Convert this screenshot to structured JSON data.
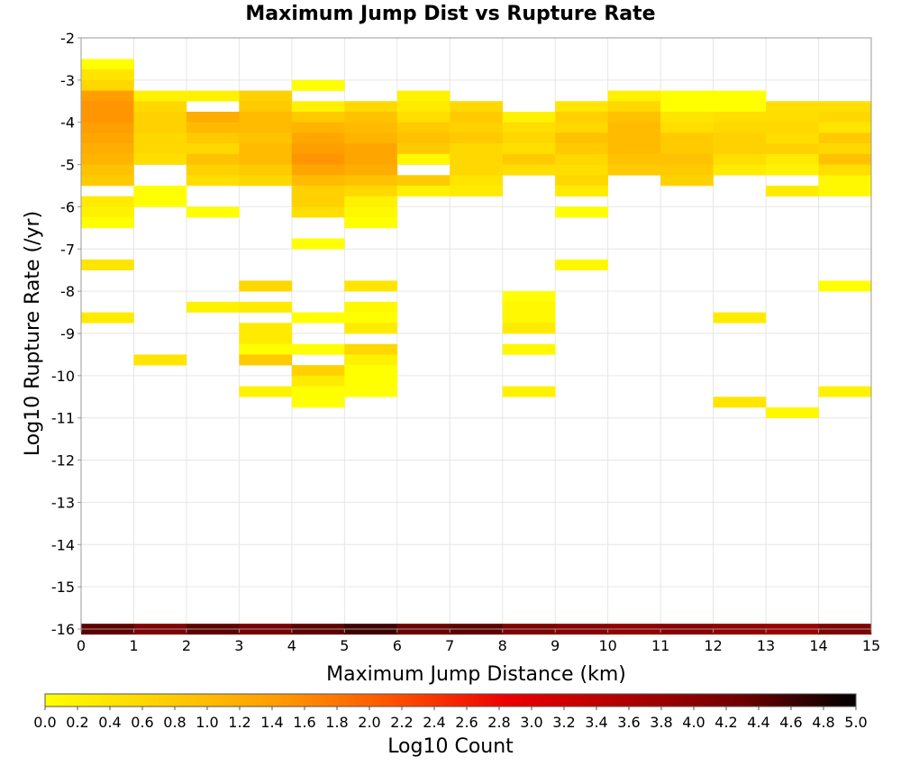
{
  "chart_data": {
    "type": "heatmap",
    "title": "Maximum Jump Dist vs Rupture Rate",
    "xlabel": "Maximum Jump Distance (km)",
    "ylabel": "Log10 Rupture Rate (/yr)",
    "xlim": [
      0,
      15
    ],
    "ylim": [
      -16,
      -2
    ],
    "x_bin_width": 1,
    "y_bin_width": 0.25,
    "grid": true,
    "x_ticks": [
      "0",
      "1",
      "2",
      "3",
      "4",
      "5",
      "6",
      "7",
      "8",
      "9",
      "10",
      "11",
      "12",
      "13",
      "14",
      "15"
    ],
    "y_ticks": [
      "-2",
      "-3",
      "-4",
      "-5",
      "-6",
      "-7",
      "-8",
      "-9",
      "-10",
      "-11",
      "-12",
      "-13",
      "-14",
      "-15",
      "-16"
    ],
    "colorbar": {
      "label": "Log10 Count",
      "range": [
        0,
        5
      ],
      "ticks": [
        "0.0",
        "0.2",
        "0.4",
        "0.6",
        "0.8",
        "1.0",
        "1.2",
        "1.4",
        "1.6",
        "1.8",
        "2.0",
        "2.2",
        "2.4",
        "2.6",
        "2.8",
        "3.0",
        "3.2",
        "3.4",
        "3.6",
        "3.8",
        "4.0",
        "4.2",
        "4.4",
        "4.6",
        "4.8",
        "5.0"
      ],
      "colors": [
        "#ffff00",
        "#ffd000",
        "#ff9c00",
        "#ff5200",
        "#ec0000",
        "#b00000",
        "#700000",
        "#000000"
      ]
    },
    "cells": [
      [
        0,
        -2.625,
        0.0
      ],
      [
        0,
        -2.875,
        0.4
      ],
      [
        0,
        -3.125,
        0.6
      ],
      [
        0,
        -3.375,
        1.4
      ],
      [
        0,
        -3.625,
        1.5
      ],
      [
        0,
        -3.875,
        1.5
      ],
      [
        0,
        -4.125,
        1.4
      ],
      [
        0,
        -4.375,
        1.3
      ],
      [
        0,
        -4.625,
        1.2
      ],
      [
        0,
        -4.875,
        1.1
      ],
      [
        0,
        -5.125,
        0.9
      ],
      [
        0,
        -5.375,
        0.8
      ],
      [
        0,
        -5.875,
        0.3
      ],
      [
        0,
        -6.125,
        0.2
      ],
      [
        0,
        -6.375,
        0.0
      ],
      [
        0,
        -7.375,
        0.4
      ],
      [
        0,
        -8.625,
        0.3
      ],
      [
        0,
        -16.0,
        4.4
      ],
      [
        1,
        -3.375,
        0.2
      ],
      [
        1,
        -3.625,
        0.6
      ],
      [
        1,
        -3.875,
        0.7
      ],
      [
        1,
        -4.125,
        0.7
      ],
      [
        1,
        -4.375,
        0.6
      ],
      [
        1,
        -4.625,
        0.6
      ],
      [
        1,
        -4.875,
        0.5
      ],
      [
        1,
        -5.625,
        0.0
      ],
      [
        1,
        -5.875,
        0.0
      ],
      [
        1,
        -9.625,
        0.4
      ],
      [
        1,
        -16.0,
        4.1
      ],
      [
        2,
        -3.375,
        0.2
      ],
      [
        2,
        -3.875,
        1.2
      ],
      [
        2,
        -4.125,
        1.0
      ],
      [
        2,
        -4.375,
        0.8
      ],
      [
        2,
        -4.625,
        0.6
      ],
      [
        2,
        -4.875,
        0.9
      ],
      [
        2,
        -5.125,
        0.7
      ],
      [
        2,
        -5.375,
        0.5
      ],
      [
        2,
        -6.125,
        0.0
      ],
      [
        2,
        -8.375,
        0.2
      ],
      [
        2,
        -16.0,
        4.4
      ],
      [
        3,
        -3.375,
        0.7
      ],
      [
        3,
        -3.625,
        0.8
      ],
      [
        3,
        -3.875,
        1.0
      ],
      [
        3,
        -4.125,
        1.0
      ],
      [
        3,
        -4.375,
        0.9
      ],
      [
        3,
        -4.625,
        1.0
      ],
      [
        3,
        -4.875,
        1.0
      ],
      [
        3,
        -5.125,
        0.8
      ],
      [
        3,
        -5.375,
        0.6
      ],
      [
        3,
        -7.875,
        0.6
      ],
      [
        3,
        -8.375,
        0.3
      ],
      [
        3,
        -8.875,
        0.3
      ],
      [
        3,
        -9.125,
        0.3
      ],
      [
        3,
        -9.375,
        0.0
      ],
      [
        3,
        -9.625,
        0.8
      ],
      [
        3,
        -10.375,
        0.2
      ],
      [
        3,
        -16.0,
        4.2
      ],
      [
        4,
        -3.125,
        0.0
      ],
      [
        4,
        -3.625,
        0.2
      ],
      [
        4,
        -3.875,
        0.8
      ],
      [
        4,
        -4.125,
        1.1
      ],
      [
        4,
        -4.375,
        1.3
      ],
      [
        4,
        -4.625,
        1.4
      ],
      [
        4,
        -4.875,
        1.5
      ],
      [
        4,
        -5.125,
        1.3
      ],
      [
        4,
        -5.375,
        1.0
      ],
      [
        4,
        -5.625,
        0.7
      ],
      [
        4,
        -5.875,
        0.7
      ],
      [
        4,
        -6.125,
        0.5
      ],
      [
        4,
        -6.875,
        0.0
      ],
      [
        4,
        -8.625,
        0.0
      ],
      [
        4,
        -9.375,
        0.0
      ],
      [
        4,
        -9.875,
        0.7
      ],
      [
        4,
        -10.125,
        0.3
      ],
      [
        4,
        -10.375,
        0.0
      ],
      [
        4,
        -10.625,
        0.0
      ],
      [
        4,
        -16.0,
        4.4
      ],
      [
        5,
        -3.625,
        0.6
      ],
      [
        5,
        -3.875,
        0.9
      ],
      [
        5,
        -4.125,
        1.0
      ],
      [
        5,
        -4.375,
        1.1
      ],
      [
        5,
        -4.625,
        1.3
      ],
      [
        5,
        -4.875,
        1.3
      ],
      [
        5,
        -5.125,
        1.2
      ],
      [
        5,
        -5.375,
        0.9
      ],
      [
        5,
        -5.625,
        0.6
      ],
      [
        5,
        -5.875,
        0.2
      ],
      [
        5,
        -6.125,
        0.1
      ],
      [
        5,
        -6.375,
        0.0
      ],
      [
        5,
        -7.875,
        0.4
      ],
      [
        5,
        -8.375,
        0.1
      ],
      [
        5,
        -8.625,
        0.0
      ],
      [
        5,
        -8.875,
        0.3
      ],
      [
        5,
        -9.375,
        0.6
      ],
      [
        5,
        -9.625,
        0.2
      ],
      [
        5,
        -9.875,
        0.0
      ],
      [
        5,
        -10.125,
        0.0
      ],
      [
        5,
        -10.375,
        0.0
      ],
      [
        5,
        -16.0,
        4.6
      ],
      [
        6,
        -3.375,
        0.2
      ],
      [
        6,
        -3.625,
        0.3
      ],
      [
        6,
        -3.875,
        0.5
      ],
      [
        6,
        -4.125,
        0.8
      ],
      [
        6,
        -4.375,
        0.9
      ],
      [
        6,
        -4.625,
        0.8
      ],
      [
        6,
        -4.875,
        0.1
      ],
      [
        6,
        -5.375,
        0.8
      ],
      [
        6,
        -5.625,
        0.2
      ],
      [
        6,
        -16.0,
        4.3
      ],
      [
        7,
        -3.625,
        0.6
      ],
      [
        7,
        -3.875,
        0.8
      ],
      [
        7,
        -4.125,
        0.7
      ],
      [
        7,
        -4.375,
        0.8
      ],
      [
        7,
        -4.625,
        0.6
      ],
      [
        7,
        -4.875,
        0.6
      ],
      [
        7,
        -5.125,
        0.6
      ],
      [
        7,
        -5.375,
        0.4
      ],
      [
        7,
        -5.625,
        0.3
      ],
      [
        7,
        -16.0,
        4.4
      ],
      [
        8,
        -3.875,
        0.2
      ],
      [
        8,
        -4.125,
        0.5
      ],
      [
        8,
        -4.375,
        0.6
      ],
      [
        8,
        -4.625,
        0.5
      ],
      [
        8,
        -4.875,
        0.8
      ],
      [
        8,
        -5.125,
        0.5
      ],
      [
        8,
        -8.125,
        0.0
      ],
      [
        8,
        -8.375,
        0.1
      ],
      [
        8,
        -8.625,
        0.1
      ],
      [
        8,
        -8.875,
        0.3
      ],
      [
        8,
        -9.375,
        0.1
      ],
      [
        8,
        -10.375,
        0.2
      ],
      [
        8,
        -16.0,
        4.1
      ],
      [
        9,
        -3.625,
        0.4
      ],
      [
        9,
        -3.875,
        0.7
      ],
      [
        9,
        -4.125,
        0.6
      ],
      [
        9,
        -4.375,
        0.9
      ],
      [
        9,
        -4.625,
        0.8
      ],
      [
        9,
        -4.875,
        0.6
      ],
      [
        9,
        -5.125,
        0.5
      ],
      [
        9,
        -5.375,
        0.6
      ],
      [
        9,
        -5.625,
        0.3
      ],
      [
        9,
        -6.125,
        0.0
      ],
      [
        9,
        -7.375,
        0.1
      ],
      [
        9,
        -16.0,
        4.0
      ],
      [
        10,
        -3.375,
        0.2
      ],
      [
        10,
        -3.625,
        0.6
      ],
      [
        10,
        -3.875,
        0.9
      ],
      [
        10,
        -4.125,
        1.0
      ],
      [
        10,
        -4.375,
        1.0
      ],
      [
        10,
        -4.625,
        1.0
      ],
      [
        10,
        -4.875,
        0.9
      ],
      [
        10,
        -5.125,
        0.8
      ],
      [
        10,
        -16.0,
        3.9
      ],
      [
        11,
        -3.375,
        0.0
      ],
      [
        11,
        -3.625,
        0.0
      ],
      [
        11,
        -3.875,
        0.4
      ],
      [
        11,
        -4.125,
        0.5
      ],
      [
        11,
        -4.375,
        0.8
      ],
      [
        11,
        -4.625,
        0.8
      ],
      [
        11,
        -4.875,
        0.9
      ],
      [
        11,
        -5.125,
        0.8
      ],
      [
        11,
        -5.375,
        0.7
      ],
      [
        11,
        -16.0,
        4.0
      ],
      [
        12,
        -3.375,
        0.0
      ],
      [
        12,
        -3.625,
        0.0
      ],
      [
        12,
        -3.875,
        0.5
      ],
      [
        12,
        -4.125,
        0.6
      ],
      [
        12,
        -4.375,
        0.7
      ],
      [
        12,
        -4.625,
        0.7
      ],
      [
        12,
        -4.875,
        0.5
      ],
      [
        12,
        -5.125,
        0.3
      ],
      [
        12,
        -8.625,
        0.3
      ],
      [
        12,
        -10.625,
        0.4
      ],
      [
        12,
        -16.0,
        3.9
      ],
      [
        13,
        -3.625,
        0.5
      ],
      [
        13,
        -3.875,
        0.5
      ],
      [
        13,
        -4.125,
        0.6
      ],
      [
        13,
        -4.375,
        0.5
      ],
      [
        13,
        -4.625,
        0.7
      ],
      [
        13,
        -4.875,
        0.3
      ],
      [
        13,
        -5.125,
        0.2
      ],
      [
        13,
        -5.625,
        0.3
      ],
      [
        13,
        -10.875,
        0.1
      ],
      [
        13,
        -16.0,
        3.8
      ],
      [
        14,
        -3.625,
        0.5
      ],
      [
        14,
        -3.875,
        0.6
      ],
      [
        14,
        -4.125,
        0.4
      ],
      [
        14,
        -4.375,
        0.8
      ],
      [
        14,
        -4.625,
        0.6
      ],
      [
        14,
        -4.875,
        0.9
      ],
      [
        14,
        -5.125,
        0.5
      ],
      [
        14,
        -5.375,
        0.1
      ],
      [
        14,
        -5.625,
        0.1
      ],
      [
        14,
        -7.875,
        0.0
      ],
      [
        14,
        -10.375,
        0.2
      ],
      [
        14,
        -16.0,
        4.1
      ]
    ]
  }
}
